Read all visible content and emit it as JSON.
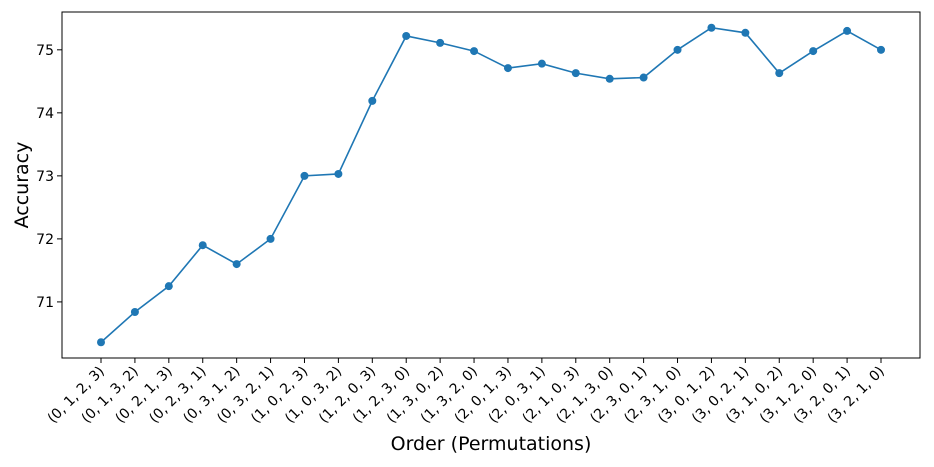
{
  "chart_data": {
    "type": "line",
    "xlabel": "Order (Permutations)",
    "ylabel": "Accuracy",
    "categories": [
      "(0, 1, 2, 3)",
      "(0, 1, 3, 2)",
      "(0, 2, 1, 3)",
      "(0, 2, 3, 1)",
      "(0, 3, 1, 2)",
      "(0, 3, 2, 1)",
      "(1, 0, 2, 3)",
      "(1, 0, 3, 2)",
      "(1, 2, 0, 3)",
      "(1, 2, 3, 0)",
      "(1, 3, 0, 2)",
      "(1, 3, 2, 0)",
      "(2, 0, 1, 3)",
      "(2, 0, 3, 1)",
      "(2, 1, 0, 3)",
      "(2, 1, 3, 0)",
      "(2, 3, 0, 1)",
      "(2, 3, 1, 0)",
      "(3, 0, 1, 2)",
      "(3, 0, 2, 1)",
      "(3, 1, 0, 2)",
      "(3, 1, 2, 0)",
      "(3, 2, 0, 1)",
      "(3, 2, 1, 0)"
    ],
    "values": [
      70.36,
      70.84,
      71.25,
      71.9,
      71.6,
      72.0,
      73.0,
      73.03,
      74.19,
      75.22,
      75.11,
      74.98,
      74.71,
      74.78,
      74.63,
      74.54,
      74.56,
      75.0,
      75.35,
      75.27,
      74.63,
      74.98,
      75.3,
      75.0
    ],
    "color": "#1f77b4",
    "ylim": [
      70.11,
      75.6
    ],
    "yticks": [
      71,
      72,
      73,
      74,
      75
    ],
    "grid": false
  }
}
